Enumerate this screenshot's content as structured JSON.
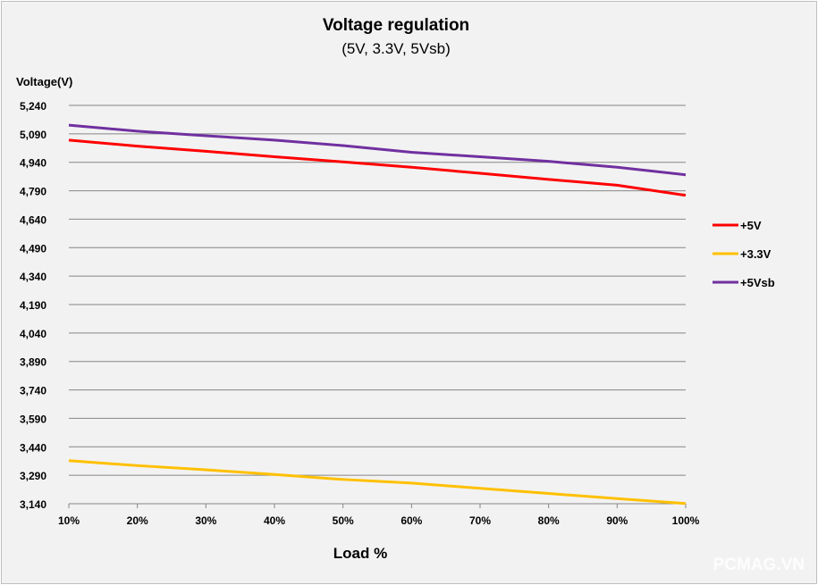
{
  "chart_data": {
    "type": "line",
    "title": "Voltage regulation",
    "subtitle": "(5V, 3.3V, 5Vsb)",
    "ylabel": "Voltage(V)",
    "xlabel": "Load %",
    "categories": [
      "10%",
      "20%",
      "30%",
      "40%",
      "50%",
      "60%",
      "70%",
      "80%",
      "90%",
      "100%"
    ],
    "y_ticks": [
      "5,240",
      "5,090",
      "4,940",
      "4,790",
      "4,640",
      "4,490",
      "4,340",
      "4,190",
      "4,040",
      "3,890",
      "3,740",
      "3,590",
      "3,440",
      "3,290",
      "3,140"
    ],
    "ylim": [
      3.14,
      5.24
    ],
    "grid": true,
    "legend_position": "right",
    "series": [
      {
        "name": "+5V",
        "color": "#ff0000",
        "values": [
          5.057,
          5.025,
          4.998,
          4.969,
          4.942,
          4.914,
          4.882,
          4.85,
          4.819,
          4.766
        ]
      },
      {
        "name": "+3.3V",
        "color": "#ffc000",
        "values": [
          3.367,
          3.341,
          3.319,
          3.294,
          3.268,
          3.249,
          3.221,
          3.194,
          3.167,
          3.141
        ]
      },
      {
        "name": "+5Vsb",
        "color": "#7030a0",
        "values": [
          5.136,
          5.104,
          5.08,
          5.057,
          5.028,
          4.993,
          4.969,
          4.945,
          4.914,
          4.874
        ]
      }
    ]
  },
  "watermark": "PCMAG.VN"
}
